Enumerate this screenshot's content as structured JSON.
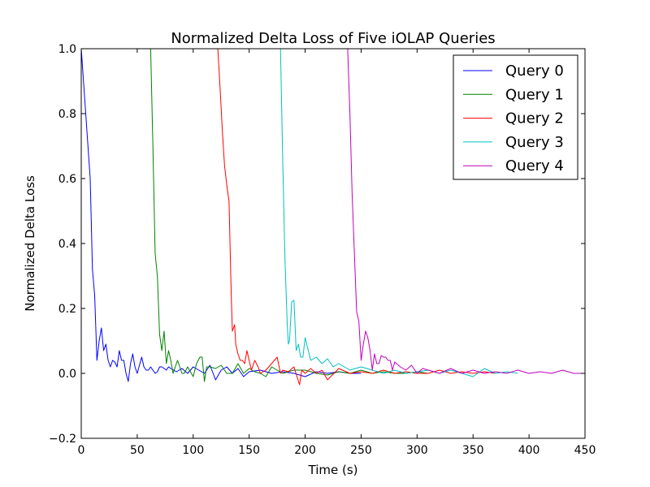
{
  "chart_data": {
    "type": "line",
    "title": "Normalized Delta Loss of Five iOLAP Queries",
    "xlabel": "Time (s)",
    "ylabel": "Normalized Delta Loss",
    "xlim": [
      0,
      450
    ],
    "ylim": [
      -0.2,
      1.0
    ],
    "xticks": [
      0,
      50,
      100,
      150,
      200,
      250,
      300,
      350,
      400,
      450
    ],
    "xtick_labels": [
      "0",
      "50",
      "100",
      "150",
      "200",
      "250",
      "300",
      "350",
      "400",
      "450"
    ],
    "yticks": [
      -0.2,
      0.0,
      0.2,
      0.4,
      0.6,
      0.8,
      1.0
    ],
    "ytick_labels": [
      "−0.2",
      "0.0",
      "0.2",
      "0.4",
      "0.6",
      "0.8",
      "1.0"
    ],
    "grid": false,
    "legend": "top-right",
    "series": [
      {
        "name": "Query 0",
        "color": "#0000ff",
        "x": [
          0,
          4,
          8,
          10,
          12,
          14,
          16,
          18,
          20,
          22,
          24,
          26,
          28,
          30,
          32,
          34,
          36,
          38,
          40,
          42,
          44,
          46,
          48,
          50,
          52,
          54,
          56,
          58,
          60,
          62,
          64,
          66,
          68,
          70,
          72,
          74,
          76,
          78,
          80,
          85,
          90,
          95,
          100,
          105,
          110,
          115,
          120,
          125,
          130,
          135,
          140,
          145,
          150,
          160,
          170,
          180,
          190,
          200,
          210,
          220,
          230,
          240,
          250
        ],
        "y": [
          1.0,
          0.8,
          0.6,
          0.32,
          0.24,
          0.04,
          0.1,
          0.14,
          0.07,
          0.09,
          0.04,
          0.02,
          0.04,
          0.035,
          0.02,
          0.07,
          0.04,
          0.04,
          0.0,
          -0.025,
          0.03,
          0.06,
          0.02,
          0.0,
          0.025,
          0.05,
          0.02,
          0.01,
          0.01,
          0.02,
          0.01,
          0.0,
          0.005,
          0.02,
          0.02,
          0.015,
          0.01,
          0.02,
          0.015,
          0.005,
          0.015,
          0.0,
          0.02,
          0.01,
          0.0,
          0.025,
          -0.02,
          0.01,
          0.02,
          0.0,
          0.015,
          -0.01,
          0.005,
          0.01,
          0.0,
          0.005,
          0.0,
          -0.01,
          0.005,
          0.0,
          0.005,
          0.0,
          0.0
        ]
      },
      {
        "name": "Query 1",
        "color": "#008000",
        "x": [
          62,
          64,
          66,
          68,
          70,
          72,
          74,
          76,
          78,
          80,
          82,
          84,
          86,
          88,
          90,
          92,
          95,
          100,
          103,
          106,
          108,
          110,
          112,
          115,
          120,
          125,
          130,
          135,
          140,
          145,
          150,
          155,
          160,
          165,
          170,
          180,
          190,
          200,
          210,
          220,
          230,
          240,
          250,
          260,
          270,
          280,
          290,
          300,
          310
        ],
        "y": [
          1.0,
          0.7,
          0.37,
          0.3,
          0.12,
          0.07,
          0.13,
          0.03,
          0.07,
          0.04,
          0.0,
          0.02,
          0.04,
          0.02,
          0.0,
          0.0,
          0.02,
          -0.01,
          0.03,
          0.05,
          0.05,
          -0.025,
          0.02,
          0.02,
          0.015,
          0.025,
          0.0,
          0.0,
          0.03,
          0.0,
          0.015,
          0.005,
          0.0,
          -0.01,
          0.02,
          0.0,
          0.01,
          0.01,
          0.0,
          -0.005,
          0.005,
          0.0,
          0.01,
          0.0,
          0.005,
          0.0,
          0.0,
          0.005,
          0.0
        ]
      },
      {
        "name": "Query 2",
        "color": "#ff0000",
        "x": [
          122,
          124,
          126,
          128,
          130,
          132,
          134,
          135,
          136,
          137,
          138,
          140,
          142,
          144,
          146,
          148,
          150,
          152,
          155,
          158,
          160,
          165,
          170,
          175,
          178,
          180,
          185,
          190,
          195,
          197,
          200,
          205,
          210,
          215,
          220,
          230,
          240,
          250,
          260,
          270,
          280,
          290,
          300,
          310,
          320,
          330,
          340,
          350,
          360,
          370
        ],
        "y": [
          1.0,
          0.88,
          0.75,
          0.64,
          0.58,
          0.53,
          0.24,
          0.13,
          0.14,
          0.15,
          0.09,
          0.06,
          0.04,
          0.04,
          0.03,
          0.07,
          0.04,
          0.01,
          0.04,
          0.02,
          0.0,
          0.01,
          0.03,
          0.05,
          0.0,
          0.01,
          0.005,
          0.02,
          -0.035,
          0.01,
          0.0,
          0.015,
          0.0,
          0.01,
          -0.02,
          0.015,
          0.0,
          0.005,
          0.0,
          0.01,
          0.0,
          0.005,
          0.0,
          0.0,
          0.01,
          0.0,
          0.005,
          0.0,
          0.005,
          0.0
        ]
      },
      {
        "name": "Query 3",
        "color": "#00bfbf",
        "x": [
          178,
          180,
          182,
          184,
          185,
          186,
          188,
          190,
          192,
          194,
          196,
          198,
          200,
          205,
          210,
          215,
          220,
          225,
          230,
          240,
          250,
          260,
          270,
          280,
          290,
          300,
          310,
          320,
          330,
          340,
          350,
          360,
          370,
          380,
          390
        ],
        "y": [
          1.0,
          0.65,
          0.35,
          0.15,
          0.09,
          0.1,
          0.22,
          0.225,
          0.07,
          0.09,
          0.05,
          0.05,
          0.11,
          0.04,
          0.05,
          0.03,
          0.045,
          0.02,
          0.03,
          0.01,
          0.02,
          0.01,
          0.0,
          0.01,
          0.0,
          0.005,
          0.01,
          0.0,
          0.01,
          0.0,
          -0.01,
          0.015,
          0.0,
          0.005,
          0.0
        ]
      },
      {
        "name": "Query 4",
        "color": "#bf00bf",
        "x": [
          238,
          240,
          242,
          244,
          246,
          248,
          250,
          252,
          254,
          256,
          258,
          260,
          262,
          264,
          266,
          268,
          270,
          272,
          274,
          276,
          278,
          280,
          285,
          290,
          295,
          300,
          305,
          310,
          320,
          330,
          340,
          350,
          360,
          370,
          380,
          390,
          400,
          410,
          420,
          430,
          440,
          450
        ],
        "y": [
          1.0,
          0.8,
          0.55,
          0.37,
          0.19,
          0.16,
          0.04,
          0.09,
          0.13,
          0.11,
          0.07,
          0.01,
          0.06,
          0.03,
          0.03,
          0.055,
          0.05,
          0.05,
          0.04,
          0.04,
          0.01,
          0.035,
          0.02,
          0.01,
          0.025,
          0.0,
          0.015,
          0.01,
          0.0,
          0.015,
          0.0,
          0.01,
          0.0,
          0.005,
          0.0,
          0.01,
          0.0,
          0.005,
          0.0,
          0.01,
          0.0,
          0.0
        ]
      }
    ]
  }
}
